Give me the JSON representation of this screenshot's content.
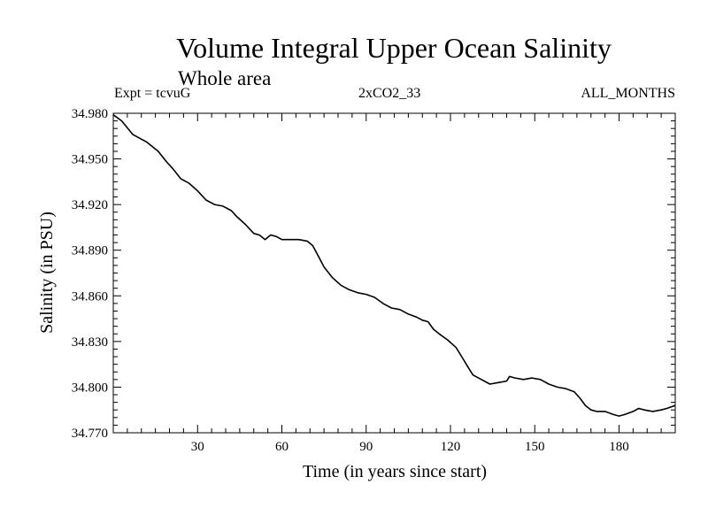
{
  "header": {
    "title": "Volume Integral Upper Ocean Salinity",
    "subtitle": "Whole area",
    "expt": "Expt = tcvuG",
    "scenario": "2xCO2_33",
    "months": "ALL_MONTHS"
  },
  "chart_data": {
    "type": "line",
    "title": "Volume Integral Upper Ocean Salinity",
    "subtitle": "Whole area",
    "xlabel": "Time (in years since start)",
    "ylabel": "Salinity (in PSU)",
    "xlim": [
      0,
      200
    ],
    "ylim": [
      34.77,
      34.98
    ],
    "xticks": [
      30,
      60,
      90,
      120,
      150,
      180
    ],
    "yticks": [
      "34.770",
      "34.800",
      "34.830",
      "34.860",
      "34.890",
      "34.920",
      "34.950",
      "34.980"
    ],
    "grid": false,
    "series": [
      {
        "color": "#000000",
        "x": [
          0,
          3,
          7,
          12,
          16,
          19,
          21,
          24,
          27,
          30,
          33,
          36,
          39,
          42,
          44,
          47,
          50,
          52,
          54,
          56,
          58,
          60,
          62,
          64,
          66,
          69,
          71,
          73,
          75,
          78,
          81,
          84,
          87,
          90,
          93,
          96,
          99,
          102,
          105,
          108,
          110,
          112,
          114,
          116,
          119,
          122,
          124,
          126,
          128,
          131,
          134,
          137,
          140,
          141,
          143,
          146,
          149,
          152,
          155,
          158,
          161,
          164,
          166,
          168,
          170,
          172,
          175,
          178,
          180,
          182,
          185,
          187,
          189,
          192,
          195,
          197,
          200
        ],
        "y": [
          34.979,
          34.975,
          34.966,
          34.961,
          34.955,
          34.948,
          34.944,
          34.937,
          34.934,
          34.929,
          34.923,
          34.92,
          34.919,
          34.916,
          34.912,
          34.907,
          34.901,
          34.9,
          34.897,
          34.9,
          34.899,
          34.897,
          34.897,
          34.897,
          34.897,
          34.896,
          34.893,
          34.886,
          34.879,
          34.872,
          34.867,
          34.864,
          34.862,
          34.861,
          34.859,
          34.855,
          34.852,
          34.851,
          34.848,
          34.846,
          34.844,
          34.843,
          34.838,
          34.835,
          34.831,
          34.826,
          34.82,
          34.814,
          34.808,
          34.805,
          34.802,
          34.803,
          34.804,
          34.807,
          34.806,
          34.805,
          34.806,
          34.805,
          34.802,
          34.8,
          34.799,
          34.797,
          34.793,
          34.788,
          34.785,
          34.784,
          34.784,
          34.782,
          34.781,
          34.782,
          34.784,
          34.786,
          34.785,
          34.784,
          34.785,
          34.786,
          34.788
        ]
      }
    ]
  }
}
